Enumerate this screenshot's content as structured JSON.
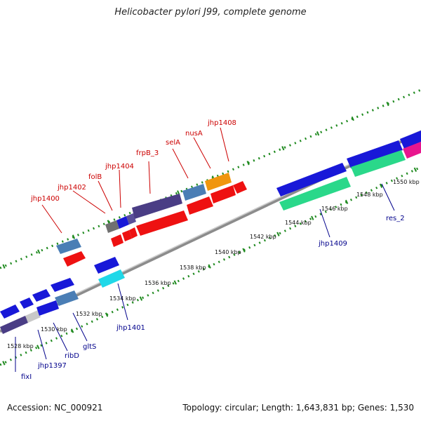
{
  "title": "Helicobacter pylori J99, complete genome",
  "footer": {
    "accession": "Accession: NC_000921",
    "topology": "Topology: circular; Length: 1,643,831 bp; Genes: 1,530"
  },
  "colors": {
    "backbone": "#8c8c8c",
    "tick": "#1f8a1f",
    "label_top": "#cc0000",
    "label_bottom": "#00008b"
  },
  "scale_labels": [
    "1528 kbp",
    "1530 kbp",
    "1532 kbp",
    "1534 kbp",
    "1536 kbp",
    "1538 kbp",
    "1540 kbp",
    "1542 kbp",
    "1544 kbp",
    "1546 kbp",
    "1548 kbp",
    "1550 kbp"
  ],
  "gene_labels_top": [
    "jhp1400",
    "jhp1402",
    "folB",
    "jhp1404",
    "frpB_3",
    "selA",
    "nusA",
    "jhp1408"
  ],
  "gene_labels_bottom": [
    "fixI",
    "jhp1397",
    "ribD",
    "gltS",
    "jhp1401",
    "jhp1409",
    "res_2"
  ]
}
